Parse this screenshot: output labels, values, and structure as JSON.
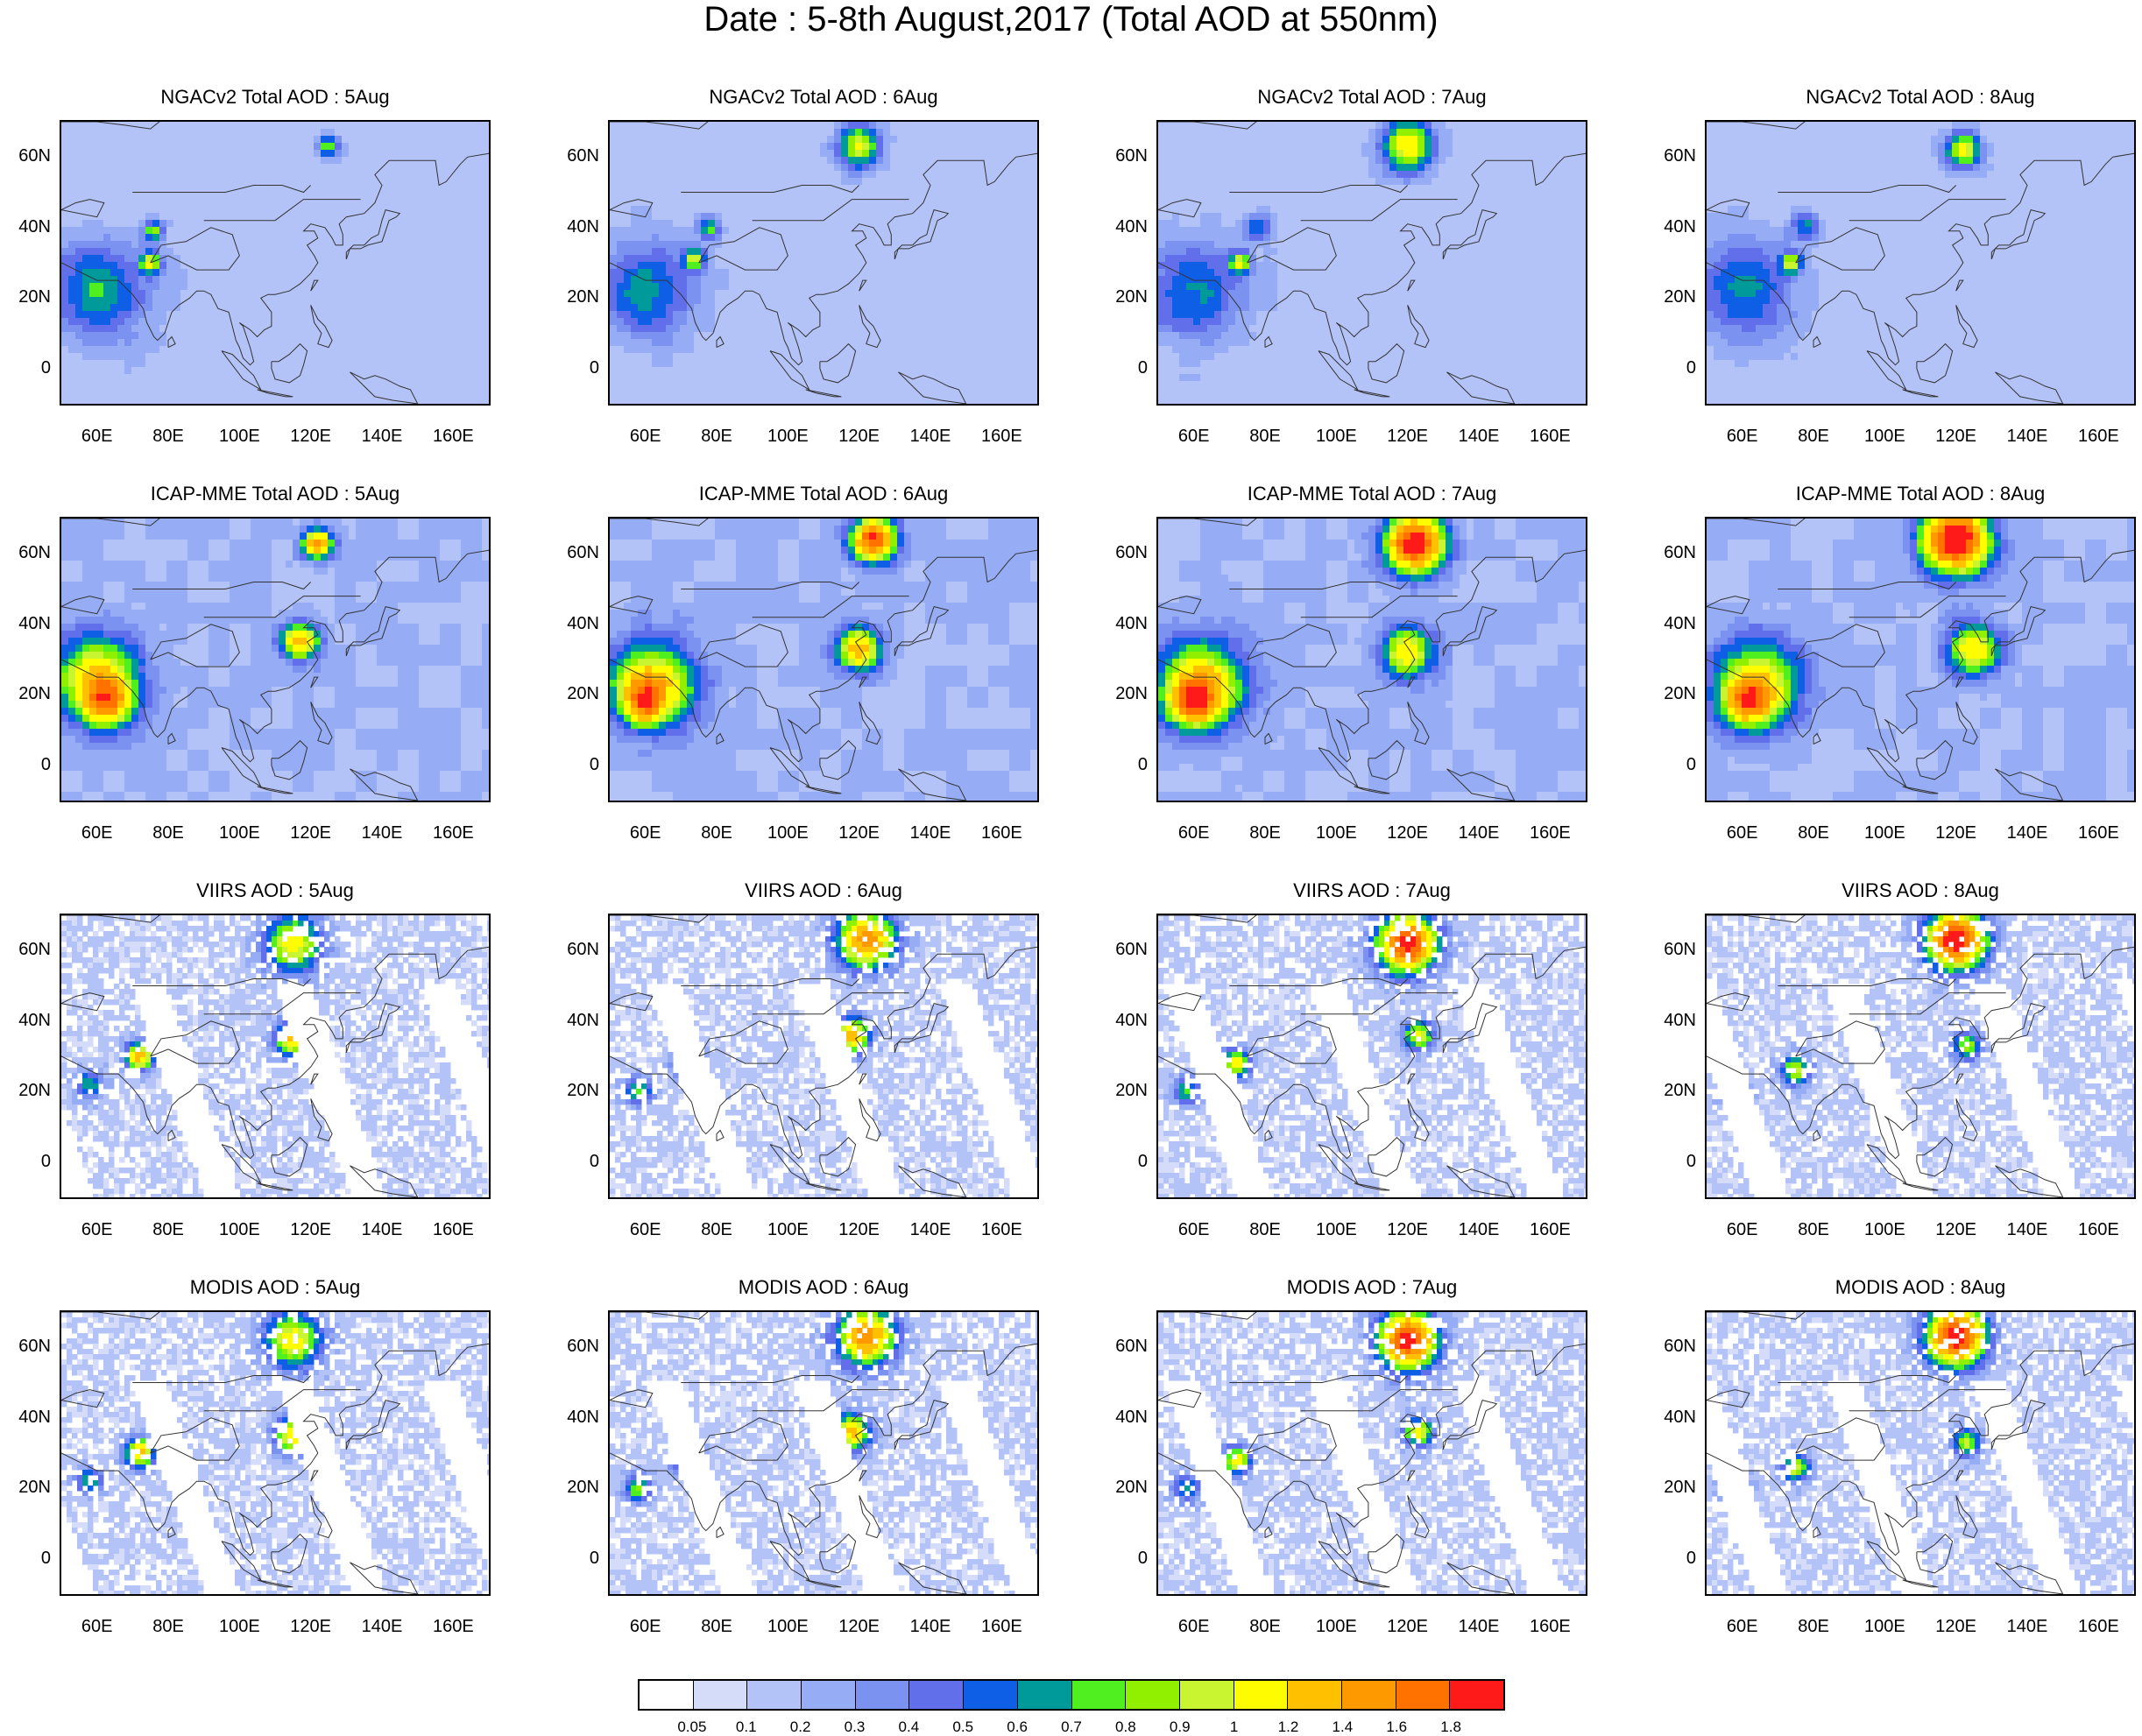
{
  "title": "Date : 5-8th August,2017 (Total AOD at 550nm)",
  "y_ticks": [
    "60N",
    "40N",
    "20N",
    "0"
  ],
  "x_ticks": [
    "60E",
    "80E",
    "100E",
    "120E",
    "140E",
    "160E"
  ],
  "rows": [
    {
      "product": "NGACv2",
      "titles": [
        "NGACv2 Total AOD : 5Aug",
        "NGACv2 Total AOD : 6Aug",
        "NGACv2 Total AOD : 7Aug",
        "NGACv2 Total AOD : 8Aug"
      ]
    },
    {
      "product": "ICAP-MME",
      "titles": [
        "ICAP-MME Total AOD : 5Aug",
        "ICAP-MME Total AOD : 6Aug",
        "ICAP-MME Total AOD : 7Aug",
        "ICAP-MME Total AOD : 8Aug"
      ]
    },
    {
      "product": "VIIRS",
      "titles": [
        "VIIRS AOD : 5Aug",
        "VIIRS AOD : 6Aug",
        "VIIRS AOD : 7Aug",
        "VIIRS AOD : 8Aug"
      ]
    },
    {
      "product": "MODIS",
      "titles": [
        "MODIS AOD : 5Aug",
        "MODIS AOD : 6Aug",
        "MODIS AOD : 7Aug",
        "MODIS AOD : 8Aug"
      ]
    }
  ],
  "colorbar": {
    "labels": [
      "0.05",
      "0.1",
      "0.2",
      "0.3",
      "0.4",
      "0.5",
      "0.6",
      "0.7",
      "0.8",
      "0.9",
      "1",
      "1.2",
      "1.4",
      "1.6",
      "1.8"
    ],
    "colors": [
      "#ffffff",
      "#d4dcfa",
      "#b4c3f7",
      "#96acf5",
      "#7b92f0",
      "#6170ea",
      "#0f5fe6",
      "#009a9a",
      "#50f020",
      "#90f000",
      "#c8f530",
      "#fffc00",
      "#ffc000",
      "#ff9900",
      "#ff7200",
      "#ff1a1a"
    ]
  }
}
